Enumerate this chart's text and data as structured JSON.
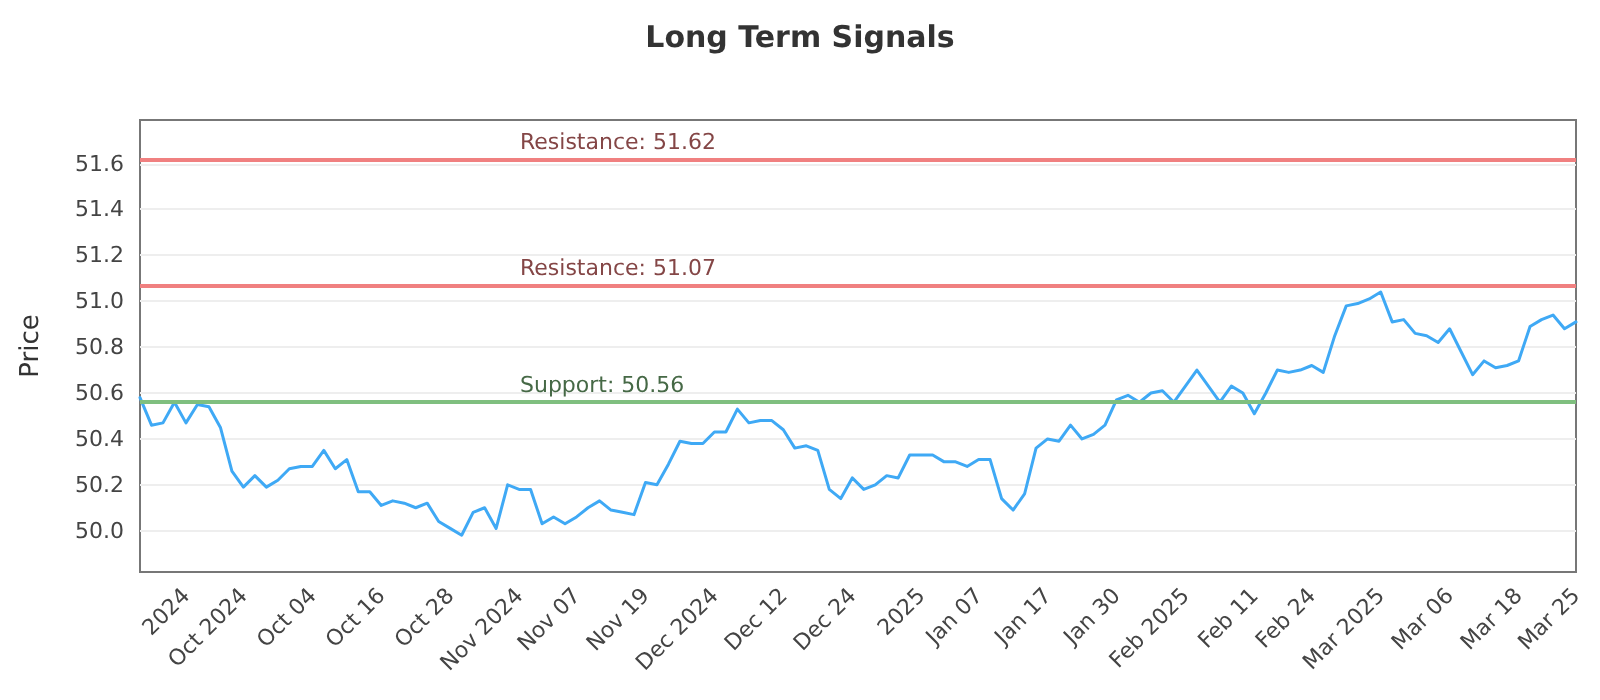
{
  "chart_data": {
    "type": "line",
    "title": "Long Term Signals",
    "ylabel": "Price",
    "categories": [
      null,
      null,
      null,
      null,
      "2024",
      null,
      null,
      null,
      null,
      "Oct 2024",
      null,
      null,
      null,
      null,
      null,
      "Oct 04",
      null,
      null,
      null,
      null,
      null,
      "Oct 16",
      null,
      null,
      null,
      null,
      null,
      "Oct 28",
      null,
      null,
      null,
      null,
      null,
      "Nov 2024",
      null,
      null,
      null,
      null,
      "Nov 07",
      null,
      null,
      null,
      null,
      null,
      "Nov 19",
      null,
      null,
      null,
      null,
      null,
      "Dec 2024",
      null,
      null,
      null,
      null,
      null,
      "Dec 12",
      null,
      null,
      null,
      null,
      null,
      "Dec 24",
      null,
      null,
      null,
      null,
      null,
      "2025",
      null,
      null,
      null,
      null,
      "Jan 07",
      null,
      null,
      null,
      null,
      null,
      "Jan 17",
      null,
      null,
      null,
      null,
      null,
      "Jan 30",
      null,
      null,
      null,
      null,
      null,
      "Feb 2025",
      null,
      null,
      null,
      null,
      null,
      "Feb 11",
      null,
      null,
      null,
      null,
      "Feb 24",
      null,
      null,
      null,
      null,
      null,
      "Mar 2025",
      null,
      null,
      null,
      null,
      null,
      "Mar 06",
      null,
      null,
      null,
      null,
      null,
      "Mar 18",
      null,
      null,
      null,
      null,
      "Mar 25"
    ],
    "series": [
      {
        "color": "#3fa9f5",
        "values": [
          50.58,
          50.46,
          50.47,
          50.56,
          50.47,
          50.55,
          50.54,
          50.45,
          50.26,
          50.19,
          50.24,
          50.19,
          50.22,
          50.27,
          50.28,
          50.28,
          50.35,
          50.27,
          50.31,
          50.17,
          50.17,
          50.11,
          50.13,
          50.12,
          50.1,
          50.12,
          50.04,
          50.01,
          49.98,
          50.08,
          50.1,
          50.01,
          50.2,
          50.18,
          50.18,
          50.03,
          50.06,
          50.03,
          50.06,
          50.1,
          50.13,
          50.09,
          50.08,
          50.07,
          50.21,
          50.2,
          50.29,
          50.39,
          50.38,
          50.38,
          50.43,
          50.43,
          50.53,
          50.47,
          50.48,
          50.48,
          50.44,
          50.36,
          50.37,
          50.35,
          50.18,
          50.14,
          50.23,
          50.18,
          50.2,
          50.24,
          50.23,
          50.33,
          50.33,
          50.33,
          50.3,
          50.3,
          50.28,
          50.31,
          50.31,
          50.14,
          50.09,
          50.16,
          50.36,
          50.4,
          50.39,
          50.46,
          50.4,
          50.42,
          50.46,
          50.57,
          50.59,
          50.56,
          50.6,
          50.61,
          50.56,
          50.63,
          50.7,
          50.63,
          50.56,
          50.63,
          50.6,
          50.51,
          50.6,
          50.7,
          50.69,
          50.7,
          50.72,
          50.69,
          50.85,
          50.98,
          50.99,
          51.01,
          51.04,
          50.91,
          50.92,
          50.86,
          50.85,
          50.82,
          50.88,
          50.78,
          50.68,
          50.74,
          50.71,
          50.72,
          50.74,
          50.89,
          50.92,
          50.94,
          50.88,
          50.91
        ]
      }
    ],
    "ylim": [
      49.82,
      51.79
    ],
    "yticks": [
      {
        "value": 50.0,
        "label": "50.0"
      },
      {
        "value": 50.2,
        "label": "50.2"
      },
      {
        "value": 50.4,
        "label": "50.4"
      },
      {
        "value": 50.6,
        "label": "50.6"
      },
      {
        "value": 50.8,
        "label": "50.8"
      },
      {
        "value": 51.0,
        "label": "51.0"
      },
      {
        "value": 51.2,
        "label": "51.2"
      },
      {
        "value": 51.4,
        "label": "51.4"
      },
      {
        "value": 51.6,
        "label": "51.6"
      }
    ],
    "ref_lines": [
      {
        "axis": "y",
        "value": 51.62,
        "label": "Resistance: 51.62",
        "color": "#f08080"
      },
      {
        "axis": "y",
        "value": 51.07,
        "label": "Resistance: 51.07",
        "color": "#f08080"
      },
      {
        "axis": "y",
        "value": 50.56,
        "label": "Support: 50.56",
        "color": "#7fbf7f"
      }
    ],
    "grid": "y",
    "marker": "none",
    "line_style": "solid"
  }
}
